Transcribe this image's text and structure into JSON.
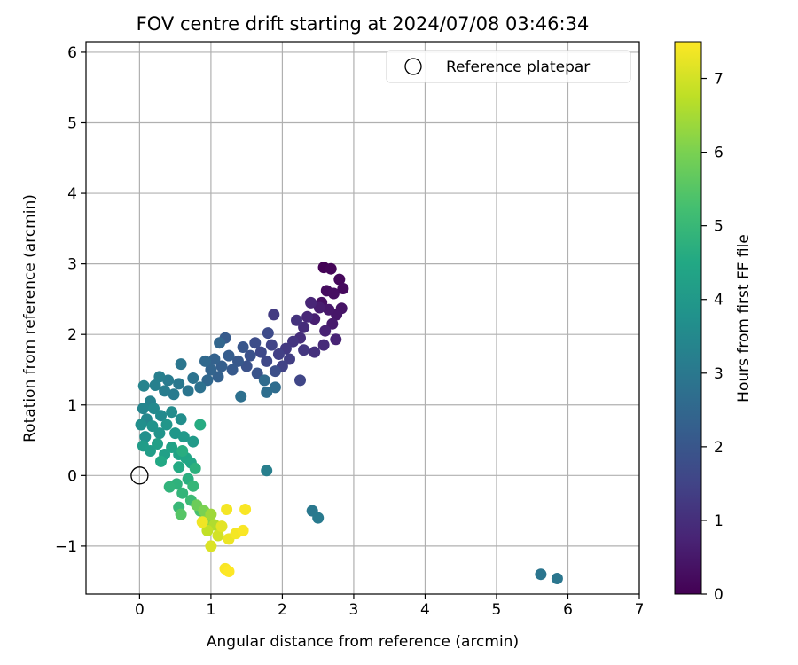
{
  "chart_data": {
    "type": "scatter",
    "title": "FOV centre drift starting at 2024/07/08 03:46:34",
    "xlabel": "Angular distance from reference (arcmin)",
    "ylabel": "Rotation from reference (arcmin)",
    "xlim": [
      -0.75,
      7.0
    ],
    "ylim": [
      -1.68,
      6.15
    ],
    "xticks": [
      0,
      1,
      2,
      3,
      4,
      5,
      6,
      7
    ],
    "yticks": [
      -1,
      0,
      1,
      2,
      3,
      4,
      5,
      6
    ],
    "xtick_labels": [
      "0",
      "1",
      "2",
      "3",
      "4",
      "5",
      "6",
      "7"
    ],
    "ytick_labels": [
      "−1",
      "0",
      "1",
      "2",
      "3",
      "4",
      "5",
      "6"
    ],
    "grid": true,
    "legend": {
      "placement": "top-right",
      "entries": [
        "Reference platepar"
      ]
    },
    "reference_point": {
      "label": "Reference platepar",
      "x": 0,
      "y": 0
    },
    "colorbar": {
      "label": "Hours from first FF file",
      "range": [
        0,
        7.5
      ],
      "ticks": [
        0,
        1,
        2,
        3,
        4,
        5,
        6,
        7
      ],
      "tick_labels": [
        "0",
        "1",
        "2",
        "3",
        "4",
        "5",
        "6",
        "7"
      ],
      "colormap": "viridis"
    },
    "point_columns": [
      "x",
      "y",
      "hours"
    ],
    "points": [
      [
        2.58,
        2.95,
        0.05
      ],
      [
        2.68,
        2.93,
        0.1
      ],
      [
        2.8,
        2.78,
        0.15
      ],
      [
        2.85,
        2.65,
        0.2
      ],
      [
        2.62,
        2.62,
        0.25
      ],
      [
        2.72,
        2.58,
        0.3
      ],
      [
        2.55,
        2.45,
        0.35
      ],
      [
        2.83,
        2.37,
        0.4
      ],
      [
        2.76,
        2.28,
        0.45
      ],
      [
        2.65,
        2.35,
        0.5
      ],
      [
        2.7,
        2.15,
        0.55
      ],
      [
        2.52,
        2.38,
        0.6
      ],
      [
        2.45,
        2.22,
        0.65
      ],
      [
        2.6,
        2.05,
        0.7
      ],
      [
        2.75,
        1.93,
        0.75
      ],
      [
        2.4,
        2.45,
        0.8
      ],
      [
        2.35,
        2.25,
        0.85
      ],
      [
        2.58,
        1.85,
        0.9
      ],
      [
        2.3,
        2.1,
        0.95
      ],
      [
        2.25,
        1.95,
        1.0
      ],
      [
        2.45,
        1.75,
        1.05
      ],
      [
        2.2,
        2.2,
        1.1
      ],
      [
        2.15,
        1.9,
        1.15
      ],
      [
        2.3,
        1.78,
        1.2
      ],
      [
        2.05,
        1.8,
        1.25
      ],
      [
        1.88,
        2.28,
        1.3
      ],
      [
        2.1,
        1.65,
        1.35
      ],
      [
        1.95,
        1.72,
        1.4
      ],
      [
        2.0,
        1.55,
        1.45
      ],
      [
        1.85,
        1.85,
        1.5
      ],
      [
        2.25,
        1.35,
        1.55
      ],
      [
        1.78,
        1.62,
        1.6
      ],
      [
        1.7,
        1.75,
        1.65
      ],
      [
        1.8,
        2.02,
        1.7
      ],
      [
        1.62,
        1.88,
        1.75
      ],
      [
        1.9,
        1.48,
        1.8
      ],
      [
        1.55,
        1.7,
        1.85
      ],
      [
        1.5,
        1.55,
        1.9
      ],
      [
        1.65,
        1.45,
        1.95
      ],
      [
        1.45,
        1.82,
        2.0
      ],
      [
        1.38,
        1.62,
        2.05
      ],
      [
        1.3,
        1.5,
        2.1
      ],
      [
        1.2,
        1.95,
        2.15
      ],
      [
        1.25,
        1.7,
        2.2
      ],
      [
        1.15,
        1.55,
        2.25
      ],
      [
        1.1,
        1.4,
        2.3
      ],
      [
        1.05,
        1.65,
        2.35
      ],
      [
        1.0,
        1.5,
        2.4
      ],
      [
        1.12,
        1.88,
        2.45
      ],
      [
        0.95,
        1.35,
        2.5
      ],
      [
        0.92,
        1.62,
        2.55
      ],
      [
        1.75,
        1.35,
        2.6
      ],
      [
        1.9,
        1.25,
        2.65
      ],
      [
        1.78,
        1.18,
        2.7
      ],
      [
        1.42,
        1.12,
        2.75
      ],
      [
        0.85,
        1.25,
        2.8
      ],
      [
        0.75,
        1.38,
        2.85
      ],
      [
        0.68,
        1.2,
        2.9
      ],
      [
        0.58,
        1.58,
        2.95
      ],
      [
        0.55,
        1.3,
        3.0
      ],
      [
        0.48,
        1.15,
        3.05
      ],
      [
        0.4,
        1.35,
        3.1
      ],
      [
        0.35,
        1.2,
        3.15
      ],
      [
        0.28,
        1.4,
        3.2
      ],
      [
        0.22,
        1.28,
        3.25
      ],
      [
        0.15,
        1.05,
        3.3
      ],
      [
        0.06,
        1.27,
        3.35
      ],
      [
        0.05,
        0.95,
        3.4
      ],
      [
        0.1,
        0.8,
        3.45
      ],
      [
        0.2,
        0.95,
        3.5
      ],
      [
        0.3,
        0.85,
        3.55
      ],
      [
        0.45,
        0.9,
        3.6
      ],
      [
        0.58,
        0.8,
        3.65
      ],
      [
        0.02,
        0.72,
        3.7
      ],
      [
        0.08,
        0.55,
        3.75
      ],
      [
        0.18,
        0.7,
        3.8
      ],
      [
        0.28,
        0.6,
        3.85
      ],
      [
        0.38,
        0.72,
        3.9
      ],
      [
        0.5,
        0.6,
        3.95
      ],
      [
        0.62,
        0.55,
        4.0
      ],
      [
        0.75,
        0.48,
        4.05
      ],
      [
        0.05,
        0.42,
        4.1
      ],
      [
        0.15,
        0.35,
        4.15
      ],
      [
        0.25,
        0.45,
        4.2
      ],
      [
        0.35,
        0.3,
        4.25
      ],
      [
        0.45,
        0.4,
        4.3
      ],
      [
        0.55,
        0.3,
        4.35
      ],
      [
        0.65,
        0.25,
        4.4
      ],
      [
        0.72,
        0.18,
        4.45
      ],
      [
        0.3,
        0.2,
        4.5
      ],
      [
        0.55,
        0.12,
        4.55
      ],
      [
        0.85,
        0.72,
        4.6
      ],
      [
        0.6,
        0.35,
        4.65
      ],
      [
        0.68,
        -0.05,
        4.7
      ],
      [
        0.78,
        0.1,
        4.75
      ],
      [
        0.52,
        -0.12,
        4.8
      ],
      [
        0.42,
        -0.16,
        4.85
      ],
      [
        0.6,
        -0.25,
        4.9
      ],
      [
        0.75,
        -0.15,
        4.95
      ],
      [
        0.55,
        -0.45,
        5.0
      ],
      [
        0.72,
        -0.35,
        5.1
      ],
      [
        0.85,
        -0.5,
        5.3
      ],
      [
        0.58,
        -0.55,
        5.5
      ],
      [
        0.8,
        -0.42,
        5.8
      ],
      [
        0.9,
        -0.5,
        6.0
      ],
      [
        0.92,
        -0.65,
        6.2
      ],
      [
        1.0,
        -0.55,
        6.4
      ],
      [
        1.05,
        -0.7,
        6.6
      ],
      [
        0.95,
        -0.78,
        6.8
      ],
      [
        1.1,
        -0.85,
        7.0
      ],
      [
        1.0,
        -1.0,
        7.1
      ],
      [
        1.15,
        -0.72,
        7.2
      ],
      [
        1.25,
        -0.9,
        7.3
      ],
      [
        1.35,
        -0.82,
        7.4
      ],
      [
        1.45,
        -0.78,
        7.45
      ],
      [
        1.22,
        -0.48,
        7.4
      ],
      [
        1.48,
        -0.48,
        7.45
      ],
      [
        1.2,
        -1.32,
        7.45
      ],
      [
        1.25,
        -1.36,
        7.5
      ],
      [
        0.88,
        -0.66,
        7.35
      ],
      [
        1.78,
        0.07,
        3.2
      ],
      [
        2.42,
        -0.5,
        3.0
      ],
      [
        2.5,
        -0.6,
        3.05
      ],
      [
        5.62,
        -1.4,
        2.9
      ],
      [
        5.85,
        -1.46,
        2.95
      ]
    ]
  }
}
